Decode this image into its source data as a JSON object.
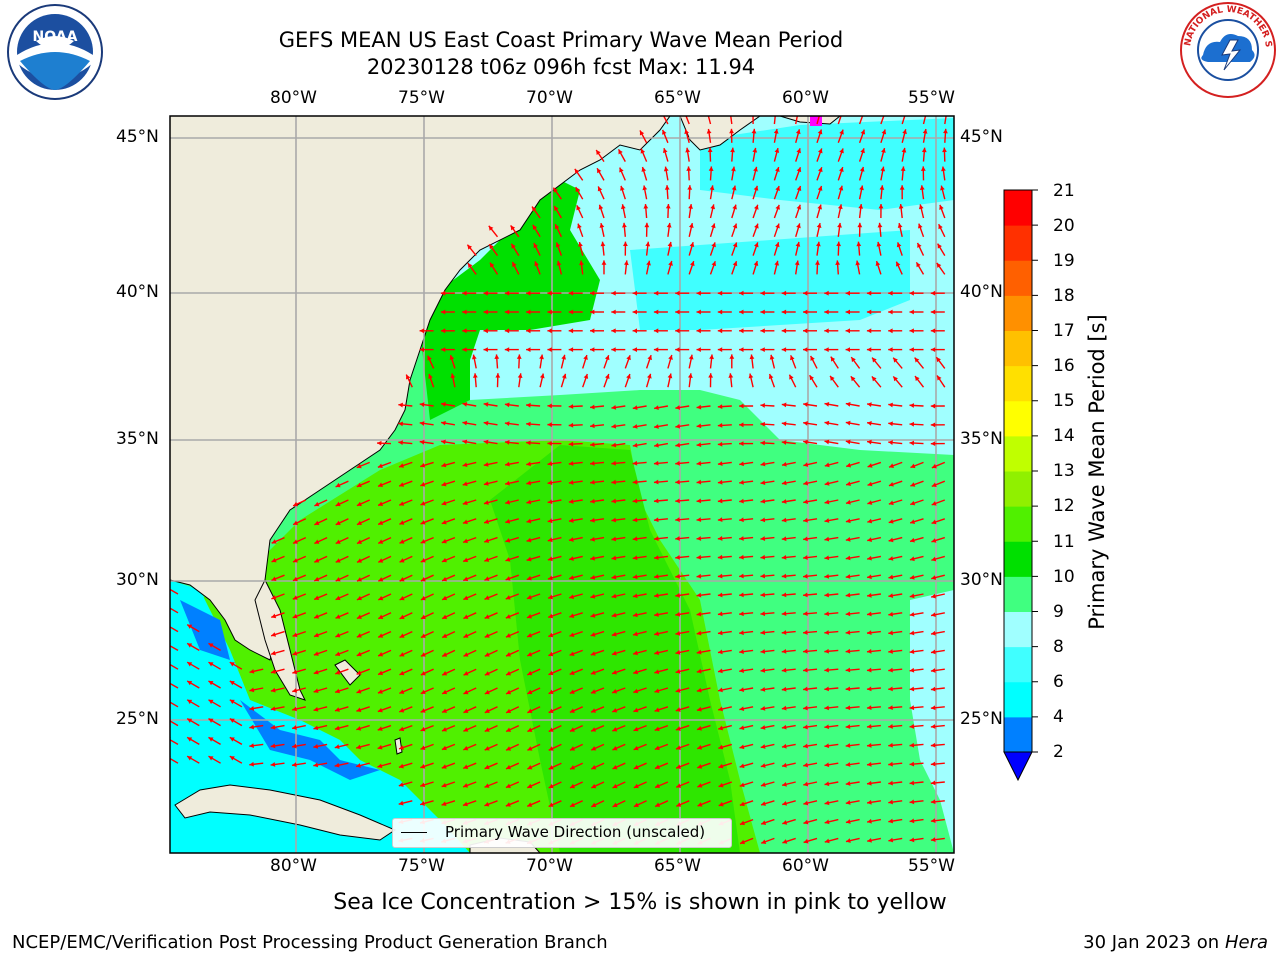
{
  "title": {
    "line1": "GEFS MEAN US East Coast Primary Wave Mean Period",
    "line2": "20230128 t06z 096h fcst   Max: 11.94"
  },
  "map": {
    "lon_labels": [
      "80°W",
      "75°W",
      "70°W",
      "65°W",
      "60°W",
      "55°W"
    ],
    "lat_labels": [
      "45°N",
      "40°N",
      "35°N",
      "30°N",
      "25°N"
    ],
    "legend_label": "Primary Wave Direction (unscaled)",
    "colors": {
      "land": "#efecdc",
      "grid": "#a9a9a9",
      "arrow": "#ff0000",
      "sea_ice": "#ff00ff"
    }
  },
  "colorbar": {
    "title": "Primary Wave Mean Period [s]",
    "ticks": [
      "21",
      "20",
      "19",
      "18",
      "17",
      "16",
      "15",
      "14",
      "13",
      "12",
      "11",
      "10",
      "9",
      "8",
      "6",
      "4",
      "2"
    ],
    "colors": [
      "#0000ff",
      "#0080ff",
      "#00ffff",
      "#40ffff",
      "#a0ffff",
      "#40ff80",
      "#00e000",
      "#50f000",
      "#90f000",
      "#c0ff00",
      "#ffff00",
      "#ffe000",
      "#ffc000",
      "#ff9000",
      "#ff6000",
      "#ff3000",
      "#ff0000"
    ]
  },
  "subtitle": "Sea Ice Concentration > 15% is shown in pink to yellow",
  "footer": {
    "left": "NCEP/EMC/Verification Post Processing Product Generation Branch",
    "right_prefix": "30 Jan 2023 on ",
    "right_host": "Hera"
  },
  "logos": {
    "left": "noara-logo",
    "right": "national-weather-service-logo",
    "left_text": "NOAA",
    "right_text": "NATIONAL WEATHER SERVICE"
  }
}
